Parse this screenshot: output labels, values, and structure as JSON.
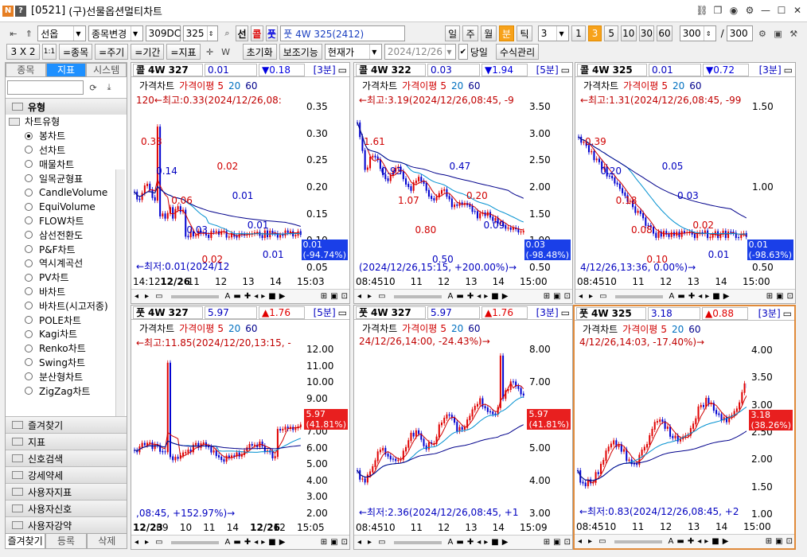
{
  "titlebar": {
    "id_label": "[0521]",
    "title": "(구)선물옵션멀티차트"
  },
  "toolbar": {
    "market_select": "선옵",
    "item_change": "종목변경",
    "code": "309DC",
    "strike": "325",
    "btn_futures": "선",
    "btn_call": "콜",
    "btn_put": "풋",
    "item_name": "풋 4W 325(2412)",
    "periods": [
      "일",
      "주",
      "월",
      "분",
      "틱"
    ],
    "minutes_value": "3",
    "interval_buttons": [
      "1",
      "3",
      "5",
      "10",
      "30",
      "60"
    ],
    "count_value": "300",
    "slash": "/",
    "total_value": "300"
  },
  "toolbar2": {
    "layout_label": "3 X 2",
    "ratio_label": "1:1",
    "btn_item": "=종목",
    "btn_period": "=주기",
    "btn_range": "=기간",
    "btn_indicator": "=지표",
    "btn_reset": "초기화",
    "btn_aux": "보조기능",
    "btn_current": "현재가",
    "date": "2024/12/26",
    "today_label": "당일",
    "formula_btn": "수식관리"
  },
  "left": {
    "tabs": [
      "종목",
      "지표",
      "시스템"
    ],
    "section_title": "유형",
    "subsection": "차트유형",
    "chart_types": [
      "봉차트",
      "선차트",
      "매물차트",
      "일목균형표",
      "CandleVolume",
      "EquiVolume",
      "FLOW차트",
      "삼선전환도",
      "P&F차트",
      "역시계곡선",
      "PV차트",
      "바차트",
      "바차트(시고저종)",
      "POLE차트",
      "Kagi차트",
      "Renko차트",
      "Swing차트",
      "분산형차트",
      "ZigZag차트"
    ],
    "folders": [
      "즐겨찾기",
      "지표",
      "신호검색",
      "강세약세",
      "사용자지표",
      "사용자신호",
      "사용자강약"
    ],
    "bottom_tabs": [
      "즐겨찾기",
      "등록",
      "삭제"
    ]
  },
  "panels": [
    {
      "type": "콜",
      "expiry": "4W",
      "strike": "327",
      "price": "0.01",
      "change": "▼0.18",
      "change_color": "#0000e0",
      "interval": "[3분]",
      "legend": {
        "price": "가격차트",
        "ma": "가격이평",
        "ma1": "5",
        "ma2": "20",
        "ma3": "60"
      },
      "top_note": "120←최고:0.33(2024/12/26,08:",
      "bottom_note": "←최저:0.01(2024/12",
      "value_box": [
        "0.01",
        "(-94.74%)"
      ],
      "value_color": "#1a3fe8",
      "yticks": [
        "0.35",
        "0.30",
        "0.25",
        "0.20",
        "0.15",
        "0.10",
        "0.05"
      ],
      "xticks": [
        "14:12",
        "12/26",
        "11",
        "12",
        "13",
        "14",
        "15:03"
      ],
      "labels": [
        {
          "t": "0.33",
          "c": "red"
        },
        {
          "t": "0.14",
          "c": "blue"
        },
        {
          "t": "0.06",
          "c": "red"
        },
        {
          "t": "0.03",
          "c": "blue"
        },
        {
          "t": "0.02",
          "c": "red"
        },
        {
          "t": "0.02",
          "c": "red"
        },
        {
          "t": "0.01",
          "c": "blue"
        },
        {
          "t": "0.01",
          "c": "blue"
        },
        {
          "t": "0.01",
          "c": "blue"
        }
      ]
    },
    {
      "type": "콜",
      "expiry": "4W",
      "strike": "322",
      "price": "0.03",
      "change": "▼1.94",
      "change_color": "#0000e0",
      "interval": "[5분]",
      "legend": {
        "price": "가격차트",
        "ma": "가격이평",
        "ma1": "5",
        "ma2": "20",
        "ma3": "60"
      },
      "top_note": "←최고:3.19(2024/12/26,08:45, -9",
      "bottom_note": "(2024/12/26,15:15, +200.00%)→",
      "value_box": [
        "0.03",
        "(-98.48%)"
      ],
      "value_color": "#1a3fe8",
      "yticks": [
        "3.50",
        "3.00",
        "2.50",
        "2.00",
        "1.50",
        "1.00",
        "0.50"
      ],
      "xticks": [
        "08:45",
        "10",
        "11",
        "12",
        "13",
        "14",
        "15:00"
      ],
      "labels": [
        {
          "t": "1.61",
          "c": "red"
        },
        {
          "t": "0.93",
          "c": "blue"
        },
        {
          "t": "1.07",
          "c": "red"
        },
        {
          "t": "0.80",
          "c": "red"
        },
        {
          "t": "0.50",
          "c": "blue"
        },
        {
          "t": "0.47",
          "c": "blue"
        },
        {
          "t": "0.20",
          "c": "red"
        },
        {
          "t": "0.09",
          "c": "blue"
        }
      ]
    },
    {
      "type": "콜",
      "expiry": "4W",
      "strike": "325",
      "price": "0.01",
      "change": "▼0.72",
      "change_color": "#0000e0",
      "interval": "[3분]",
      "legend": {
        "price": "가격차트",
        "ma": "가격이평",
        "ma1": "5",
        "ma2": "20",
        "ma3": "60"
      },
      "top_note": "←최고:1.31(2024/12/26,08:45, -99",
      "bottom_note": "4/12/26,13:36, 0.00%)→",
      "value_box": [
        "0.01",
        "(-98.63%)"
      ],
      "value_color": "#1a3fe8",
      "yticks": [
        "1.50",
        "1.00",
        "0.50"
      ],
      "xticks": [
        "08:45",
        "10",
        "11",
        "12",
        "13",
        "14",
        "15:00"
      ],
      "labels": [
        {
          "t": "0.39",
          "c": "red"
        },
        {
          "t": "0.20",
          "c": "blue"
        },
        {
          "t": "0.18",
          "c": "red"
        },
        {
          "t": "0.08",
          "c": "red"
        },
        {
          "t": "0.10",
          "c": "red"
        },
        {
          "t": "0.05",
          "c": "blue"
        },
        {
          "t": "0.03",
          "c": "blue"
        },
        {
          "t": "0.02",
          "c": "red"
        },
        {
          "t": "0.01",
          "c": "blue"
        }
      ]
    },
    {
      "type": "풋",
      "expiry": "4W",
      "strike": "327",
      "price": "5.97",
      "change": "▲1.76",
      "change_color": "#e00000",
      "interval": "[5분]",
      "legend": {
        "price": "가격차트",
        "ma": "가격이평",
        "ma1": "5",
        "ma2": "20",
        "ma3": "60"
      },
      "top_note": "←최고:11.85(2024/12/20,13:15, -",
      "bottom_note": ",08:45, +152.97%)→",
      "value_box": [
        "5.97",
        "(41.81%)"
      ],
      "value_color": "#e81f1f",
      "yticks": [
        "12.00",
        "11.00",
        "10.00",
        "9.00",
        "8.00",
        "7.00",
        "6.00",
        "5.00",
        "4.00",
        "3.00",
        "2.00"
      ],
      "xticks": [
        "12/23",
        "09",
        "10",
        "11",
        "14",
        "12/26",
        "12",
        "15:05"
      ],
      "labels": []
    },
    {
      "type": "풋",
      "expiry": "4W",
      "strike": "327",
      "price": "5.97",
      "change": "▲1.76",
      "change_color": "#e00000",
      "interval": "[3분]",
      "legend": {
        "price": "가격차트",
        "ma": "가격이평",
        "ma1": "5",
        "ma2": "20",
        "ma3": "60"
      },
      "top_note": "24/12/26,14:00, -24.43%)→",
      "bottom_note": "←최저:2.36(2024/12/26,08:45, +1",
      "value_box": [
        "5.97",
        "(41.81%)"
      ],
      "value_color": "#e81f1f",
      "yticks": [
        "8.00",
        "7.00",
        "6.00",
        "5.00",
        "4.00",
        "3.00"
      ],
      "xticks": [
        "08:45",
        "10",
        "11",
        "12",
        "13",
        "14",
        "15:09"
      ],
      "labels": []
    },
    {
      "type": "풋",
      "expiry": "4W",
      "strike": "325",
      "price": "3.18",
      "change": "▲0.88",
      "change_color": "#e00000",
      "interval": "[3분]",
      "legend": {
        "price": "가격차트",
        "ma": "가격이평",
        "ma1": "5",
        "ma2": "20",
        "ma3": "60"
      },
      "top_note": "4/12/26,14:03, -17.40%)→",
      "bottom_note": "←최저:0.83(2024/12/26,08:45, +2",
      "value_box": [
        "3.18",
        "(38.26%)"
      ],
      "value_color": "#e81f1f",
      "yticks": [
        "4.00",
        "3.50",
        "3.00",
        "2.50",
        "2.00",
        "1.50",
        "1.00"
      ],
      "xticks": [
        "08:45",
        "10",
        "11",
        "12",
        "13",
        "14",
        "15:00"
      ],
      "labels": []
    }
  ]
}
